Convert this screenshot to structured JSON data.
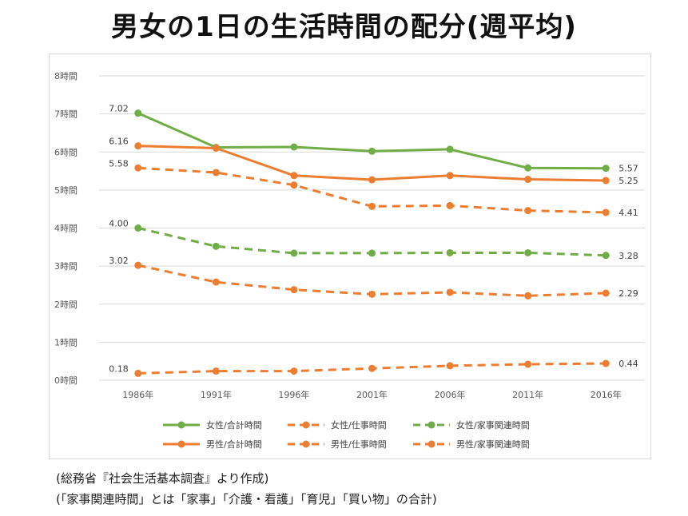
{
  "title": "男女の1日の生活時間の配分(週平均)",
  "notes": [
    "(総務省『社会生活基本調査』より作成)",
    "(「家事関連時間」とは「家事」「介護・看護」「育児」「買い物」の合計)"
  ],
  "colors": {
    "green": "#70ad47",
    "orange": "#ed7d31",
    "grid": "#d9d9d9",
    "axis_text": "#595959"
  },
  "chart_data": {
    "type": "line",
    "title": "",
    "xlabel": "",
    "ylabel": "",
    "categories": [
      "1986年",
      "1991年",
      "1996年",
      "2001年",
      "2006年",
      "2011年",
      "2016年"
    ],
    "y_ticks": [
      "0時間",
      "1時間",
      "2時間",
      "3時間",
      "4時間",
      "5時間",
      "6時間",
      "7時間",
      "8時間"
    ],
    "ylim": [
      0,
      8
    ],
    "grid": true,
    "legend_position": "bottom",
    "series": [
      {
        "name": "女性/合計時間",
        "color": "#70ad47",
        "dash": false,
        "values": [
          7.02,
          6.12,
          6.13,
          6.02,
          6.07,
          5.58,
          5.57
        ],
        "first_label": "7.02",
        "last_label": "5.57"
      },
      {
        "name": "女性/仕事時間",
        "color": "#ed7d31",
        "dash": true,
        "values": [
          0.18,
          0.24,
          0.24,
          0.31,
          0.38,
          0.42,
          0.44
        ],
        "first_label": "0.18",
        "last_label": "0.44"
      },
      {
        "name": "女性/家事関連時間",
        "color": "#70ad47",
        "dash": true,
        "values": [
          4.0,
          3.52,
          3.34,
          3.34,
          3.35,
          3.35,
          3.28
        ],
        "first_label": "4.00",
        "last_label": "3.28"
      },
      {
        "name": "男性/合計時間",
        "color": "#ed7d31",
        "dash": false,
        "values": [
          6.16,
          6.1,
          5.38,
          5.27,
          5.38,
          5.28,
          5.25
        ],
        "first_label": "6.16",
        "last_label": "5.25"
      },
      {
        "name": "男性/仕事時間",
        "color": "#ed7d31",
        "dash": true,
        "values": [
          5.58,
          5.46,
          5.13,
          4.57,
          4.59,
          4.46,
          4.41
        ],
        "first_label": "5.58",
        "last_label": "4.41"
      },
      {
        "name": "男性/家事関連時間",
        "color": "#ed7d31",
        "dash": true,
        "values": [
          3.02,
          2.58,
          2.38,
          2.26,
          2.31,
          2.22,
          2.29
        ],
        "first_label": "3.02",
        "last_label": "2.29"
      }
    ]
  }
}
